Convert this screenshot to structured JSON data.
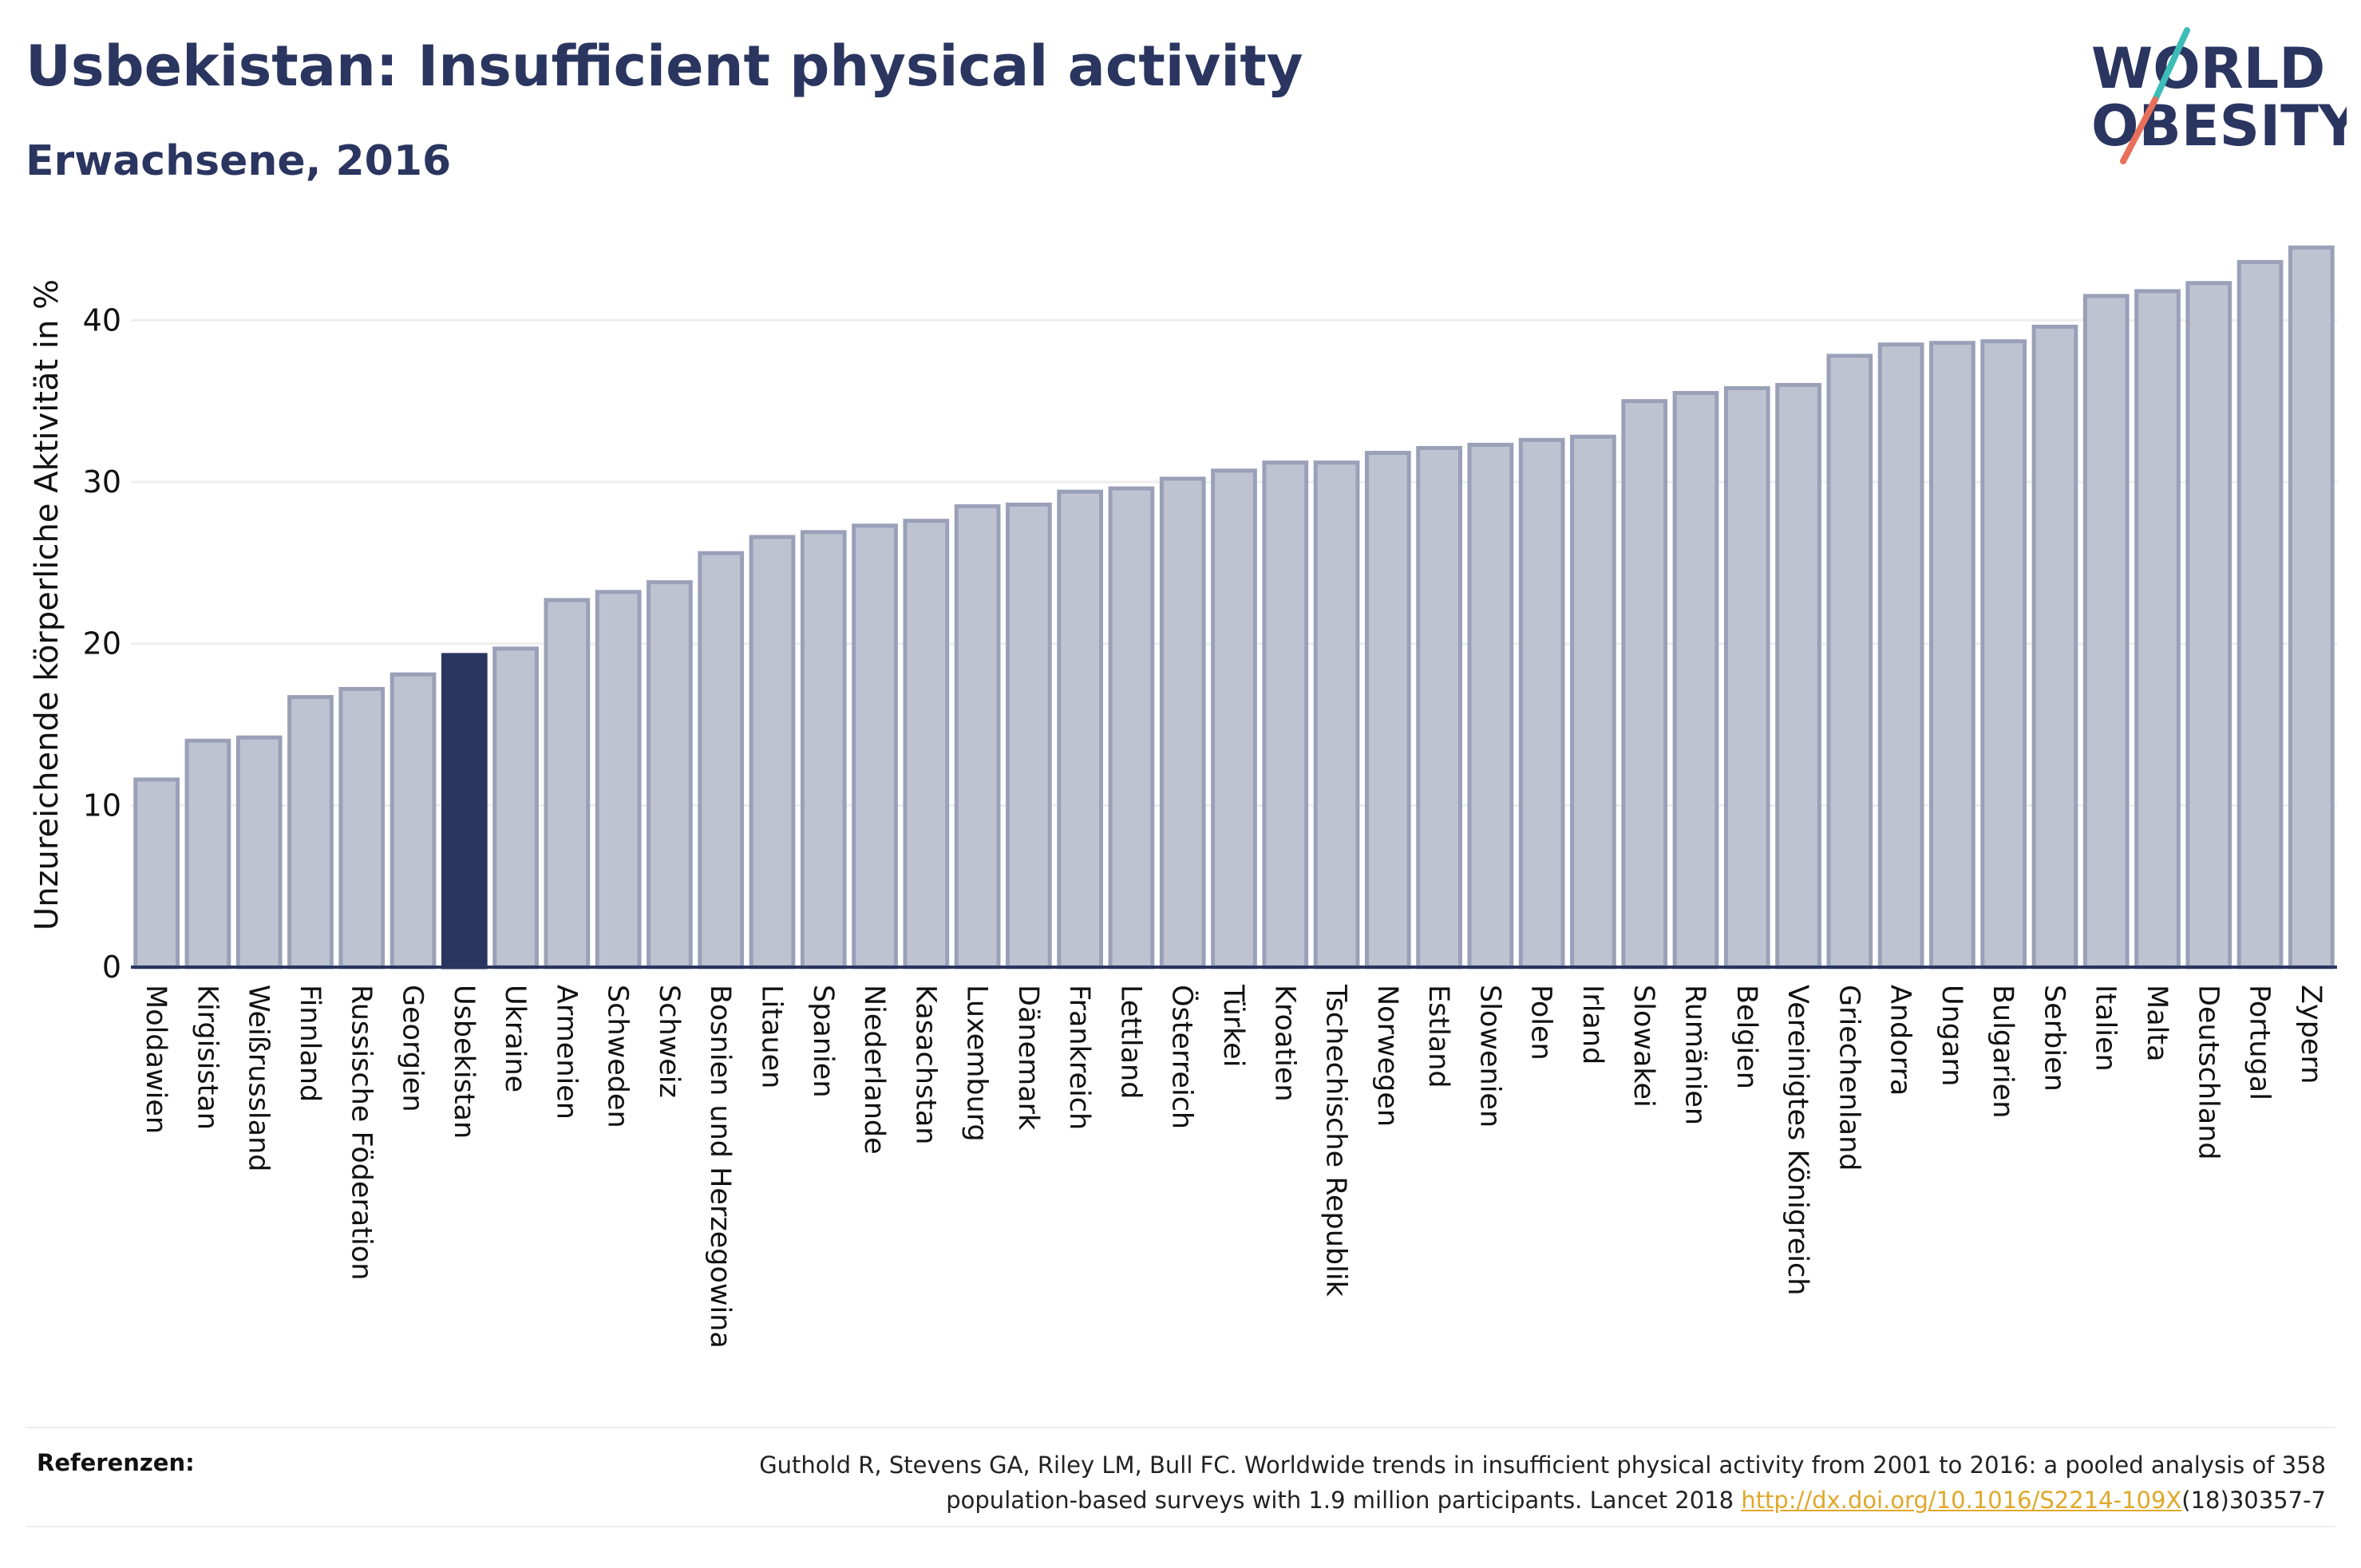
{
  "header": {
    "title": "Usbekistan: Insufficient physical activity",
    "subtitle": "Erwachsene, 2016"
  },
  "logo": {
    "line1": "WORLD",
    "line2": "OBESITY",
    "accent_teal": "#3dbdb8",
    "accent_coral": "#e8705a"
  },
  "colors": {
    "bar_fill": "#bfc3d1",
    "bar_stroke": "#9aa0b8",
    "highlight": "#2a3560",
    "grid": "#eeeeee",
    "axis": "#2a3560"
  },
  "chart_data": {
    "type": "bar",
    "title": "",
    "xlabel": "",
    "ylabel": "Unzureichende körperliche Aktivität in %",
    "ylim": [
      0,
      45
    ],
    "yticks": [
      0,
      10,
      20,
      30,
      40
    ],
    "grid": true,
    "highlight_category": "Usbekistan",
    "categories": [
      "Moldawien",
      "Kirgisistan",
      "Weißrussland",
      "Finnland",
      "Russische Föderation",
      "Georgien",
      "Usbekistan",
      "Ukraine",
      "Armenien",
      "Schweden",
      "Schweiz",
      "Bosnien und Herzegowina",
      "Litauen",
      "Spanien",
      "Niederlande",
      "Kasachstan",
      "Luxemburg",
      "Dänemark",
      "Frankreich",
      "Lettland",
      "Österreich",
      "Türkei",
      "Kroatien",
      "Tschechische Republik",
      "Norwegen",
      "Estland",
      "Slowenien",
      "Polen",
      "Irland",
      "Slowakei",
      "Rumänien",
      "Belgien",
      "Vereinigtes Königreich",
      "Griechenland",
      "Andorra",
      "Ungarn",
      "Bulgarien",
      "Serbien",
      "Italien",
      "Malta",
      "Deutschland",
      "Portugal",
      "Zypern"
    ],
    "values": [
      11.6,
      14.0,
      14.2,
      16.7,
      17.2,
      18.1,
      19.3,
      19.7,
      22.7,
      23.2,
      23.8,
      25.6,
      26.6,
      26.9,
      27.3,
      27.6,
      28.5,
      28.6,
      29.4,
      29.6,
      30.2,
      30.7,
      31.2,
      31.2,
      31.8,
      32.1,
      32.3,
      32.6,
      32.8,
      35.0,
      35.5,
      35.8,
      36.0,
      37.8,
      38.5,
      38.6,
      38.7,
      39.6,
      41.5,
      41.8,
      42.3,
      43.6,
      44.5
    ]
  },
  "references": {
    "label": "Referenzen:",
    "text_line1": "Guthold R, Stevens GA, Riley LM, Bull FC. Worldwide trends in insufficient physical activity from 2001 to 2016: a pooled analysis of 358",
    "text_line2_before": "population-based surveys with 1.9 million participants. Lancet 2018 ",
    "link": "http://dx.doi.org/10.1016/S2214-109X",
    "text_line2_after": "(18)30357-7"
  }
}
